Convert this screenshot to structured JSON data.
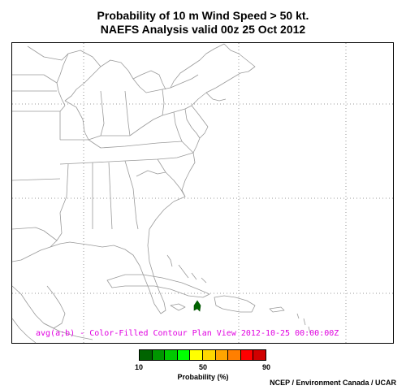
{
  "title_line1": "Probability of 10 m Wind Speed > 50 kt.",
  "title_line2": "NAEFS Analysis valid 00z 25 Oct 2012",
  "status_line": "avg(a;b) - Color-Filled Contour Plan View 2012-10-25 00:00:00Z",
  "colorbar": {
    "colors": [
      "#006400",
      "#009600",
      "#00c800",
      "#00ff00",
      "#ffff00",
      "#ffd700",
      "#ffa500",
      "#ff7f00",
      "#ff0000",
      "#d00000"
    ],
    "ticks": [
      "10",
      "50",
      "90"
    ],
    "label": "Probability (%)"
  },
  "credit": "NCEP / Environment Canada / UCAR",
  "colors": {
    "land_outline": "#aaaaaa",
    "grid": "#999999",
    "frame": "#000000",
    "contour_fill": "#006400"
  }
}
